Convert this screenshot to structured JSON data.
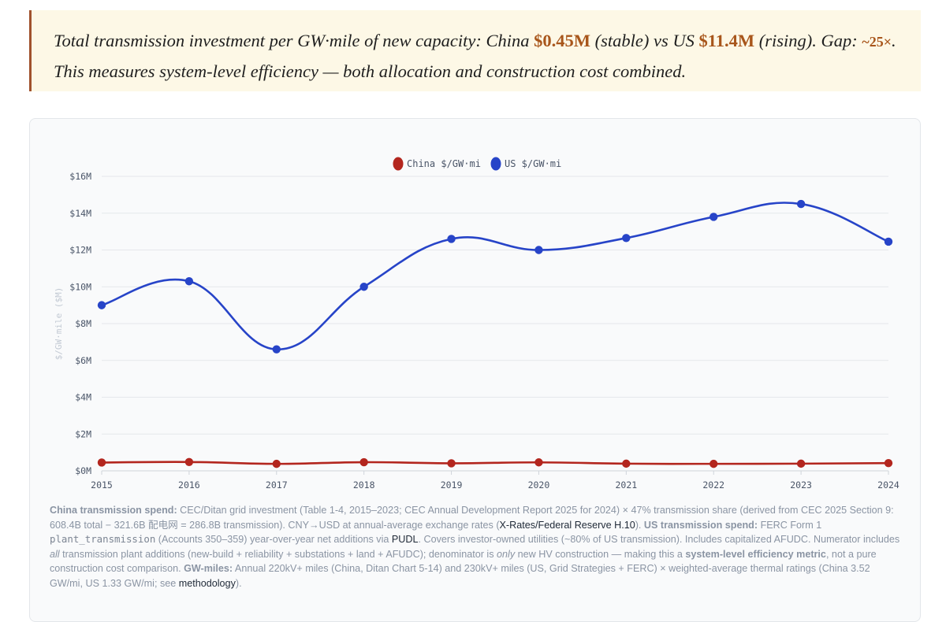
{
  "callout": {
    "t1": "Total transmission investment per GW·mile of new capacity: China ",
    "china_val": "$0.45M",
    "t2": " (stable) vs US ",
    "us_val": "$11.4M",
    "t3": " (rising). Gap: ",
    "gap": "~25×",
    "t4": ". This measures system-level efficiency — both allocation and construction cost combined."
  },
  "colors": {
    "china": "#b3261e",
    "us": "#2744c8",
    "grid": "#e5e7eb",
    "accent": "#a8561b"
  },
  "chart_data": {
    "type": "line",
    "title": "",
    "xlabel": "",
    "ylabel": "$/GW·mile ($M)",
    "x": [
      "2015",
      "2016",
      "2017",
      "2018",
      "2019",
      "2020",
      "2021",
      "2022",
      "2023",
      "2024"
    ],
    "ylim": [
      0,
      16
    ],
    "yticks": [
      "$0M",
      "$2M",
      "$4M",
      "$6M",
      "$8M",
      "$10M",
      "$12M",
      "$14M",
      "$16M"
    ],
    "legend_position": "top-center",
    "grid": "horizontal",
    "series": [
      {
        "name": "China $/GW·mi",
        "color": "#b3261e",
        "values": [
          0.45,
          0.48,
          0.38,
          0.47,
          0.41,
          0.46,
          0.39,
          0.38,
          0.39,
          0.42
        ]
      },
      {
        "name": "US $/GW·mi",
        "color": "#2744c8",
        "values": [
          9.0,
          10.3,
          6.6,
          10.0,
          12.6,
          12.0,
          12.65,
          13.8,
          14.5,
          12.45
        ]
      }
    ]
  },
  "notes": {
    "b1": "China transmission spend:",
    "t1": " CEC/Ditan grid investment (Table 1-4, 2015–2023; CEC Annual Development Report 2025 for 2024) × 47% transmission share (derived from CEC 2025 Section 9: 608.4B total − 321.6B 配电网 = 286.8B transmission). CNY→USD at annual-average exchange rates (",
    "a1": "X-Rates/Federal Reserve H.10",
    "t2": "). ",
    "b2": "US transmission spend:",
    "t3": " FERC Form 1 ",
    "code1": "plant_transmission",
    "t4": " (Accounts 350–359) year-over-year net additions via ",
    "a2": "PUDL",
    "t5": ". Covers investor-owned utilities (~80% of US transmission). Includes capitalized AFUDC. Numerator includes ",
    "i1": "all",
    "t6": " transmission plant additions (new-build + reliability + substations + land + AFUDC); denominator is ",
    "i2": "only",
    "t7": " new HV construction — making this a ",
    "b3": "system-level efficiency metric",
    "t8": ", not a pure construction cost comparison. ",
    "b4": "GW-miles:",
    "t9": " Annual 220kV+ miles (China, Ditan Chart 5-14) and 230kV+ miles (US, Grid Strategies + FERC) × weighted-average thermal ratings (China 3.52 GW/mi, US 1.33 GW/mi; see ",
    "a3": "methodology",
    "t10": ")."
  }
}
